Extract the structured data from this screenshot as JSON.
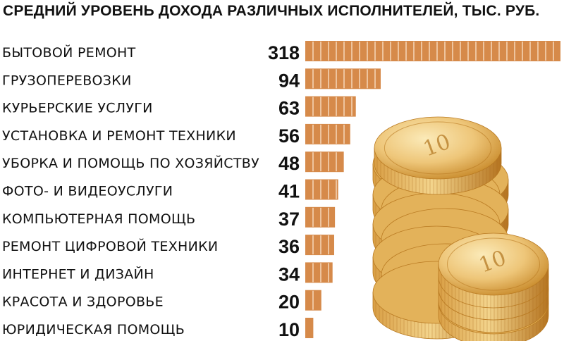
{
  "colors": {
    "bar": "#d68a4a",
    "bar_stripe": "#fbe3cc",
    "coin_light": "#f6dd9a",
    "coin_mid": "#e3b25a",
    "coin_dark": "#b97a22"
  },
  "coin_icon": "gold-coin-stack-illustration",
  "chart_data": {
    "type": "bar",
    "orientation": "horizontal",
    "title": "СРЕДНИЙ УРОВЕНЬ ДОХОДА РАЗЛИЧНЫХ ИСПОЛНИТЕЛЕЙ, ТЫС. РУБ.",
    "xlabel": "",
    "ylabel": "",
    "categories": [
      "БЫТОВОЙ РЕМОНТ",
      "ГРУЗОПЕРЕВОЗКИ",
      "КУРЬЕРСКИЕ УСЛУГИ",
      "УСТАНОВКА И РЕМОНТ ТЕХНИКИ",
      "УБОРКА И ПОМОЩЬ ПО ХОЗЯЙСТВУ",
      "ФОТО- И ВИДЕОУСЛУГИ",
      "КОМПЬЮТЕРНАЯ ПОМОЩЬ",
      "РЕМОНТ ЦИФРОВОЙ ТЕХНИКИ",
      "ИНТЕРНЕТ И ДИЗАЙН",
      "КРАСОТА И ЗДОРОВЬЕ",
      "ЮРИДИЧЕСКАЯ ПОМОЩЬ"
    ],
    "values": [
      318,
      94,
      63,
      56,
      48,
      41,
      37,
      36,
      34,
      20,
      10
    ],
    "value_labels": [
      "318",
      "94",
      "63",
      "56",
      "48",
      "41",
      "37",
      "36",
      "34",
      "20",
      "10"
    ],
    "xlim": [
      0,
      318
    ],
    "grid": false,
    "legend": "none"
  }
}
